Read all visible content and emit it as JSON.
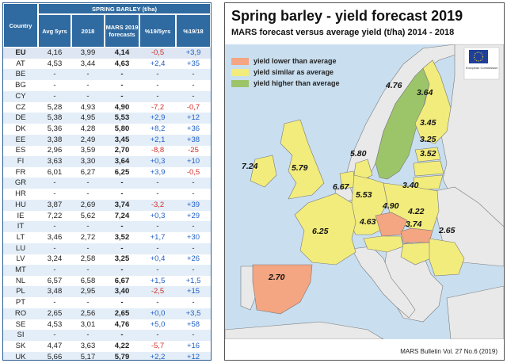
{
  "table": {
    "header_country": "Country",
    "header_group": "SPRING BARLEY (t/ha)",
    "columns": [
      "Avg 5yrs",
      "2018",
      "MARS 2019 forecasts",
      "%19/5yrs",
      "%19/18"
    ],
    "rows": [
      {
        "country": "EU",
        "avg": "4,16",
        "y2018": "3,99",
        "f2019": "4,14",
        "p5": "-0,5",
        "p18": "+3,9"
      },
      {
        "country": "AT",
        "avg": "4,53",
        "y2018": "3,44",
        "f2019": "4,63",
        "p5": "+2,4",
        "p18": "+35"
      },
      {
        "country": "BE",
        "avg": "-",
        "y2018": "-",
        "f2019": "-",
        "p5": "-",
        "p18": "-"
      },
      {
        "country": "BG",
        "avg": "-",
        "y2018": "-",
        "f2019": "-",
        "p5": "-",
        "p18": "-"
      },
      {
        "country": "CY",
        "avg": "-",
        "y2018": "-",
        "f2019": "-",
        "p5": "-",
        "p18": "-"
      },
      {
        "country": "CZ",
        "avg": "5,28",
        "y2018": "4,93",
        "f2019": "4,90",
        "p5": "-7,2",
        "p18": "-0,7"
      },
      {
        "country": "DE",
        "avg": "5,38",
        "y2018": "4,95",
        "f2019": "5,53",
        "p5": "+2,9",
        "p18": "+12"
      },
      {
        "country": "DK",
        "avg": "5,36",
        "y2018": "4,28",
        "f2019": "5,80",
        "p5": "+8,2",
        "p18": "+36"
      },
      {
        "country": "EE",
        "avg": "3,38",
        "y2018": "2,49",
        "f2019": "3,45",
        "p5": "+2,1",
        "p18": "+38"
      },
      {
        "country": "ES",
        "avg": "2,96",
        "y2018": "3,59",
        "f2019": "2,70",
        "p5": "-8,8",
        "p18": "-25"
      },
      {
        "country": "FI",
        "avg": "3,63",
        "y2018": "3,30",
        "f2019": "3,64",
        "p5": "+0,3",
        "p18": "+10"
      },
      {
        "country": "FR",
        "avg": "6,01",
        "y2018": "6,27",
        "f2019": "6,25",
        "p5": "+3,9",
        "p18": "-0,5"
      },
      {
        "country": "GR",
        "avg": "-",
        "y2018": "-",
        "f2019": "-",
        "p5": "-",
        "p18": "-"
      },
      {
        "country": "HR",
        "avg": "-",
        "y2018": "-",
        "f2019": "-",
        "p5": "-",
        "p18": "-"
      },
      {
        "country": "HU",
        "avg": "3,87",
        "y2018": "2,69",
        "f2019": "3,74",
        "p5": "-3,2",
        "p18": "+39"
      },
      {
        "country": "IE",
        "avg": "7,22",
        "y2018": "5,62",
        "f2019": "7,24",
        "p5": "+0,3",
        "p18": "+29"
      },
      {
        "country": "IT",
        "avg": "-",
        "y2018": "-",
        "f2019": "-",
        "p5": "-",
        "p18": "-"
      },
      {
        "country": "LT",
        "avg": "3,46",
        "y2018": "2,72",
        "f2019": "3,52",
        "p5": "+1,7",
        "p18": "+30"
      },
      {
        "country": "LU",
        "avg": "-",
        "y2018": "-",
        "f2019": "-",
        "p5": "-",
        "p18": "-"
      },
      {
        "country": "LV",
        "avg": "3,24",
        "y2018": "2,58",
        "f2019": "3,25",
        "p5": "+0,4",
        "p18": "+26"
      },
      {
        "country": "MT",
        "avg": "-",
        "y2018": "-",
        "f2019": "-",
        "p5": "-",
        "p18": "-"
      },
      {
        "country": "NL",
        "avg": "6,57",
        "y2018": "6,58",
        "f2019": "6,67",
        "p5": "+1,5",
        "p18": "+1,5"
      },
      {
        "country": "PL",
        "avg": "3,48",
        "y2018": "2,95",
        "f2019": "3,40",
        "p5": "-2,5",
        "p18": "+15"
      },
      {
        "country": "PT",
        "avg": "-",
        "y2018": "-",
        "f2019": "-",
        "p5": "-",
        "p18": "-"
      },
      {
        "country": "RO",
        "avg": "2,65",
        "y2018": "2,56",
        "f2019": "2,65",
        "p5": "+0,0",
        "p18": "+3,5"
      },
      {
        "country": "SE",
        "avg": "4,53",
        "y2018": "3,01",
        "f2019": "4,76",
        "p5": "+5,0",
        "p18": "+58"
      },
      {
        "country": "SI",
        "avg": "-",
        "y2018": "-",
        "f2019": "-",
        "p5": "-",
        "p18": "-"
      },
      {
        "country": "SK",
        "avg": "4,47",
        "y2018": "3,63",
        "f2019": "4,22",
        "p5": "-5,7",
        "p18": "+16"
      },
      {
        "country": "UK",
        "avg": "5,66",
        "y2018": "5,17",
        "f2019": "5,79",
        "p5": "+2,2",
        "p18": "+12"
      }
    ]
  },
  "map": {
    "title": "Spring barley - yield forecast 2019",
    "subtitle": "MARS forecast versus average yield (t/ha) 2014 - 2018",
    "legend": [
      {
        "label": "yield lower than average",
        "color": "#f4a582"
      },
      {
        "label": "yield similar as average",
        "color": "#f2ec7c"
      },
      {
        "label": "yield higher than average",
        "color": "#9cc56a"
      }
    ],
    "colors": {
      "sea": "#c9dff0",
      "land_other": "#e9e9e9",
      "border": "#7a7a7a"
    },
    "values": {
      "SE": "4.76",
      "FI": "3.64",
      "EE": "3.45",
      "LV": "3.25",
      "LT": "3.52",
      "DK": "5.80",
      "IE": "7.24",
      "UK": "5.79",
      "NL": "6.67",
      "DE": "5.53",
      "PL": "3.40",
      "CZ": "4.90",
      "SK": "4.22",
      "AT": "4.63",
      "HU": "3.74",
      "RO": "2.65",
      "FR": "6.25",
      "ES": "2.70"
    },
    "logo_text": "European Commission",
    "footer": "MARS Bulletin Vol. 27 No.6 (2019)"
  }
}
